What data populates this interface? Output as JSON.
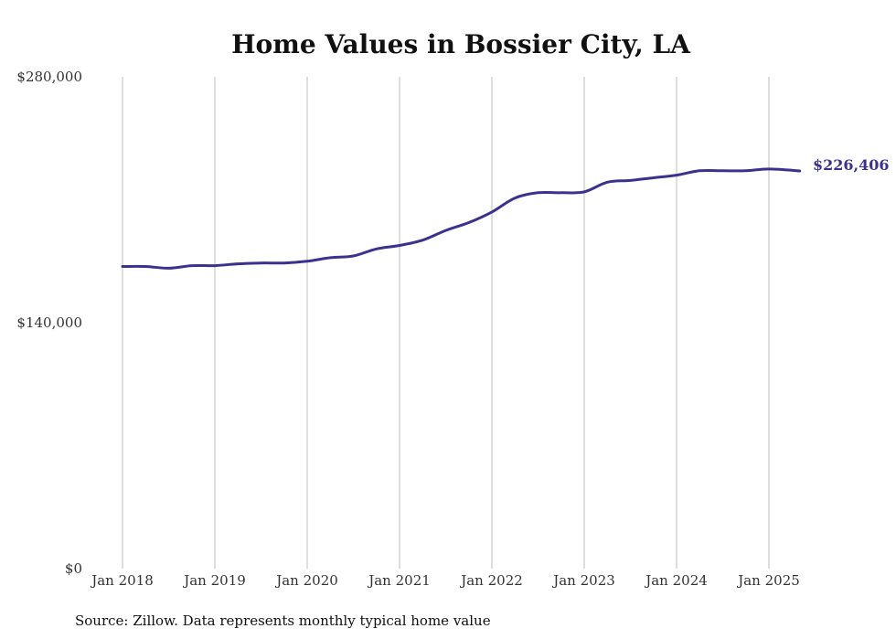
{
  "chart_data": {
    "type": "line",
    "title": "Home Values in Bossier City, LA",
    "xlabel": "",
    "ylabel": "",
    "ylim": [
      0,
      280000
    ],
    "y_ticks": [
      {
        "value": 0,
        "label": "$0"
      },
      {
        "value": 140000,
        "label": "$140,000"
      },
      {
        "value": 280000,
        "label": "$280,000"
      }
    ],
    "x_ticks": [
      {
        "value": "2018-01",
        "label": "Jan 2018"
      },
      {
        "value": "2019-01",
        "label": "Jan 2019"
      },
      {
        "value": "2020-01",
        "label": "Jan 2020"
      },
      {
        "value": "2021-01",
        "label": "Jan 2021"
      },
      {
        "value": "2022-01",
        "label": "Jan 2022"
      },
      {
        "value": "2023-01",
        "label": "Jan 2023"
      },
      {
        "value": "2024-01",
        "label": "Jan 2024"
      },
      {
        "value": "2025-01",
        "label": "Jan 2025"
      }
    ],
    "x_range": [
      "2018-01",
      "2025-05"
    ],
    "grid": "vertical",
    "legend": "none",
    "line_color": "#3b3290",
    "series": [
      {
        "x": [
          "2018-01",
          "2018-04",
          "2018-07",
          "2018-10",
          "2019-01",
          "2019-04",
          "2019-07",
          "2019-10",
          "2020-01",
          "2020-04",
          "2020-07",
          "2020-10",
          "2021-01",
          "2021-04",
          "2021-07",
          "2021-10",
          "2022-01",
          "2022-04",
          "2022-07",
          "2022-10",
          "2023-01",
          "2023-04",
          "2023-07",
          "2023-10",
          "2024-01",
          "2024-04",
          "2024-07",
          "2024-10",
          "2025-01",
          "2025-05"
        ],
        "values": [
          172000,
          172000,
          171000,
          172500,
          172500,
          173500,
          174000,
          174000,
          175000,
          177000,
          178000,
          182000,
          184000,
          187000,
          192500,
          197000,
          203000,
          211000,
          214000,
          214000,
          214500,
          220000,
          221000,
          222500,
          224000,
          226500,
          226500,
          226500,
          227500,
          226406
        ]
      }
    ],
    "end_label": "$226,406",
    "annotations": [
      "$226,406"
    ]
  },
  "source": "Source: Zillow. Data represents monthly typical home value"
}
